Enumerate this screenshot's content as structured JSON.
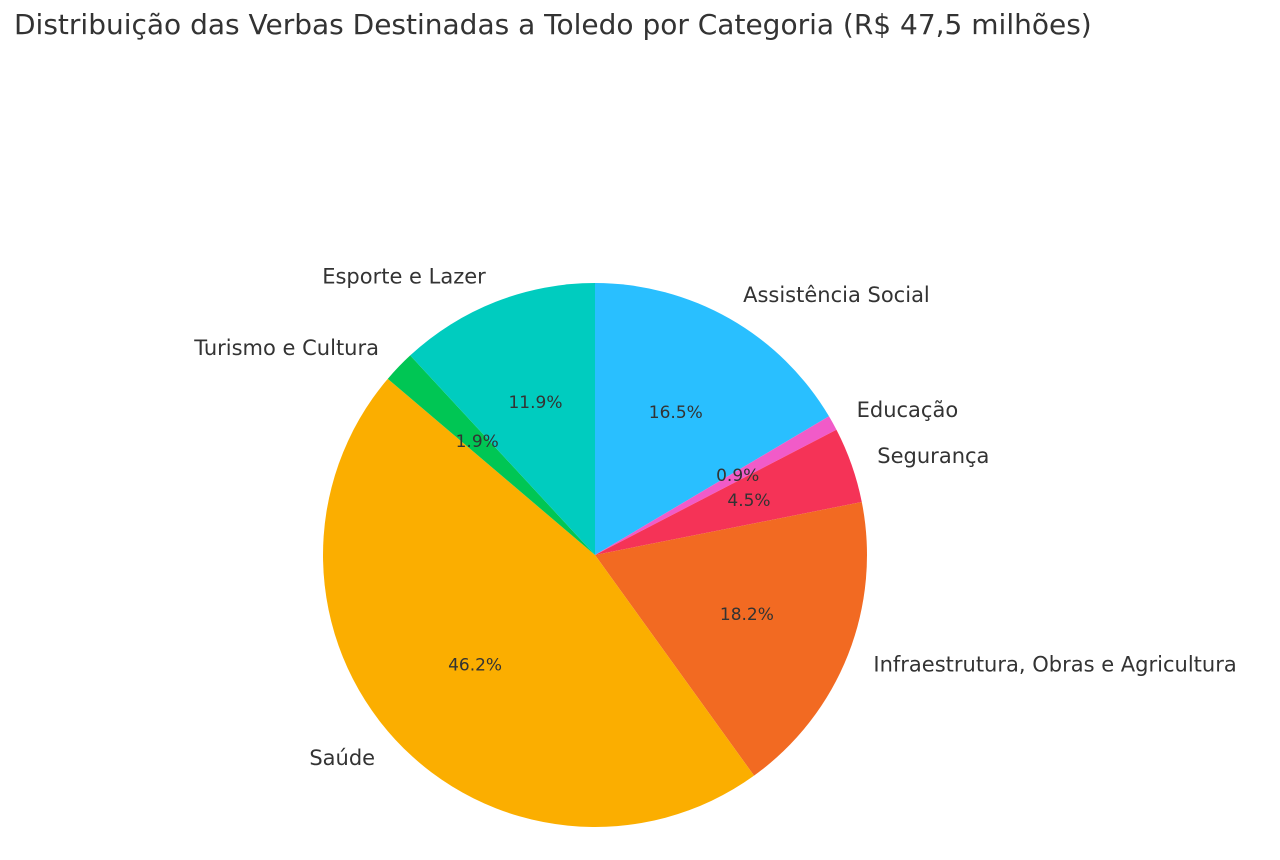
{
  "chart_data": {
    "type": "pie",
    "title": "Distribuição das Verbas Destinadas a Toledo por Categoria (R$ 47,5 milhões)",
    "start_angle_deg": 90,
    "direction": "clockwise",
    "slices": [
      {
        "label": "Assistência Social",
        "value": 16.5,
        "pct_label": "16.5%",
        "color": "#29BFFF"
      },
      {
        "label": "Educação",
        "value": 0.9,
        "pct_label": "0.9%",
        "color": "#F15BC8"
      },
      {
        "label": "Segurança",
        "value": 4.5,
        "pct_label": "4.5%",
        "color": "#F53357"
      },
      {
        "label": "Infraestrutura, Obras e Agricultura",
        "value": 18.2,
        "pct_label": "18.2%",
        "color": "#F26A22"
      },
      {
        "label": "Saúde",
        "value": 46.2,
        "pct_label": "46.2%",
        "color": "#FBAE00"
      },
      {
        "label": "Turismo e Cultura",
        "value": 1.9,
        "pct_label": "1.9%",
        "color": "#00C654"
      },
      {
        "label": "Esporte e Lazer",
        "value": 11.9,
        "pct_label": "11.9%",
        "color": "#00CCBF"
      }
    ]
  }
}
